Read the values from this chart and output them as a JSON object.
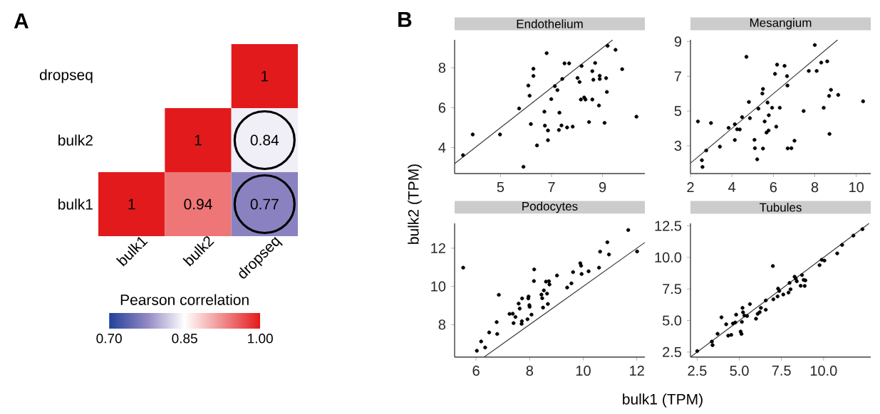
{
  "chart_data": [
    {
      "type": "heatmap",
      "title": "A",
      "categories": [
        "bulk1",
        "bulk2",
        "dropseq"
      ],
      "y_categories": [
        "dropseq",
        "bulk2",
        "bulk1"
      ],
      "cells": [
        [
          null,
          null,
          1
        ],
        [
          null,
          1,
          0.84
        ],
        [
          1,
          0.94,
          0.77
        ]
      ],
      "data_labels": true,
      "clabel": "Pearson correlation",
      "clim": [
        0.7,
        1.0
      ],
      "cticks": [
        {
          "value": 0.7,
          "label": "0.70"
        },
        0.85,
        {
          "value": 1.0,
          "label": "1.00"
        }
      ]
    },
    {
      "type": "scatter",
      "title": "Endothelium",
      "annotations": [
        "B"
      ],
      "xlim": [
        3.2,
        10.66
      ],
      "ylim": [
        2.7,
        9.4
      ],
      "xticks": [
        5,
        7,
        9
      ],
      "yticks": [
        4,
        6,
        8
      ],
      "series": [
        {
          "type": "scatter",
          "color": "#000000",
          "marker": "circle",
          "x": [
            3.53,
            3.91,
            4.98,
            5.73,
            5.9,
            6.09,
            6.14,
            6.19,
            6.29,
            6.29,
            6.43,
            6.72,
            6.74,
            6.81,
            6.86,
            6.86,
            6.99,
            7.13,
            7.23,
            7.29,
            7.31,
            7.39,
            7.42,
            7.51,
            7.69,
            7.61,
            7.83,
            8.02,
            8.1,
            8.18,
            8.15,
            8.28,
            8.33,
            8.47,
            8.6,
            8.6,
            8.64,
            8.71,
            8.86,
            8.89,
            8.89,
            9.08,
            9.14,
            9.17,
            9.2,
            9.51,
            9.77,
            10.33
          ],
          "values": [
            3.62,
            4.66,
            4.66,
            5.96,
            3.04,
            7.11,
            6.6,
            5.18,
            7.95,
            7.59,
            4.11,
            5.8,
            5.1,
            8.73,
            4.86,
            4.37,
            6.43,
            7.08,
            6.88,
            4.88,
            5.75,
            5.11,
            7.44,
            8.22,
            8.22,
            5.01,
            5.05,
            7.49,
            7.29,
            8.09,
            6.41,
            6.51,
            6.41,
            5.28,
            7.83,
            6.41,
            7.4,
            8.24,
            6.11,
            7.6,
            7.44,
            5.24,
            7.48,
            6.79,
            9.1,
            8.9,
            7.93,
            5.55
          ]
        },
        {
          "type": "line",
          "color": "#333333",
          "x": [
            3.2,
            9.4
          ],
          "values": [
            3.2,
            9.4
          ]
        }
      ]
    },
    {
      "type": "scatter",
      "title": "Mesangium",
      "xlim": [
        2.0,
        10.7
      ],
      "ylim": [
        1.4,
        9.1
      ],
      "xticks": [
        2,
        4,
        6,
        8,
        10
      ],
      "yticks": [
        3,
        5,
        7,
        9
      ],
      "series": [
        {
          "type": "scatter",
          "color": "#000000",
          "marker": "circle",
          "x": [
            2.36,
            2.55,
            2.58,
            2.76,
            2.99,
            3.42,
            3.84,
            4.14,
            4.14,
            4.25,
            4.38,
            4.49,
            4.7,
            4.82,
            4.87,
            5.09,
            5.11,
            5.22,
            5.28,
            5.47,
            5.5,
            5.5,
            5.58,
            5.67,
            5.72,
            5.77,
            5.78,
            5.94,
            6.08,
            6.14,
            6.18,
            6.31,
            6.54,
            6.66,
            6.68,
            6.69,
            6.87,
            7.02,
            7.46,
            7.71,
            8.0,
            8.09,
            8.31,
            8.43,
            8.6,
            8.69,
            8.71,
            8.78,
            9.13,
            10.33
          ],
          "values": [
            4.4,
            2.17,
            1.78,
            2.73,
            4.31,
            2.95,
            4.03,
            4.24,
            3.33,
            3.95,
            3.94,
            4.65,
            8.12,
            5.52,
            4.59,
            3.34,
            2.86,
            2.22,
            5.14,
            6.01,
            6.27,
            2.84,
            4.4,
            3.76,
            5.49,
            3.88,
            4.76,
            5.19,
            7.14,
            4.1,
            7.67,
            5.19,
            7.6,
            7.01,
            6.47,
            2.85,
            2.86,
            3.29,
            5.0,
            7.31,
            8.8,
            7.31,
            7.79,
            5.19,
            7.86,
            5.87,
            3.68,
            6.22,
            5.93,
            5.56
          ]
        },
        {
          "type": "line",
          "color": "#333333",
          "x": [
            2.0,
            9.1
          ],
          "values": [
            2.0,
            9.1
          ]
        }
      ]
    },
    {
      "type": "scatter",
      "title": "Podocytes",
      "xlabel": "bulk1 (TPM)",
      "ylabel": "bulk2 (TPM)",
      "xlim": [
        5.2,
        12.3
      ],
      "ylim": [
        6.3,
        13.3
      ],
      "xticks": [
        6,
        8,
        10,
        12
      ],
      "yticks": [
        8,
        10,
        12
      ],
      "series": [
        {
          "type": "scatter",
          "color": "#000000",
          "marker": "circle",
          "x": [
            5.52,
            6.03,
            6.19,
            6.34,
            6.49,
            6.77,
            6.79,
            6.85,
            7.25,
            7.37,
            7.4,
            7.47,
            7.59,
            7.63,
            7.7,
            7.71,
            7.72,
            7.92,
            7.95,
            7.96,
            7.99,
            8.0,
            8.07,
            8.16,
            8.17,
            8.44,
            8.47,
            8.5,
            8.53,
            8.61,
            8.65,
            8.68,
            8.72,
            8.74,
            9.02,
            9.4,
            9.56,
            9.62,
            9.89,
            9.92,
            9.94,
            10.2,
            10.59,
            10.63,
            10.9,
            10.96,
            11.68,
            12.01
          ],
          "values": [
            10.98,
            6.63,
            7.12,
            6.8,
            7.59,
            8.13,
            7.51,
            9.56,
            8.56,
            8.57,
            8.08,
            8.4,
            9.1,
            8.84,
            8.04,
            8.18,
            9.37,
            8.28,
            9.37,
            9.47,
            9.02,
            8.93,
            8.52,
            10.28,
            10.89,
            9.57,
            9.38,
            8.89,
            9.79,
            10.25,
            9.62,
            9.08,
            10.27,
            10.1,
            10.57,
            9.94,
            10.16,
            10.75,
            11.21,
            11.08,
            10.65,
            10.79,
            10.98,
            11.82,
            12.31,
            11.67,
            12.95,
            11.83
          ]
        },
        {
          "type": "line",
          "color": "#333333",
          "x": [
            6.3,
            12.3
          ],
          "values": [
            6.3,
            12.3
          ]
        }
      ]
    },
    {
      "type": "scatter",
      "title": "Tubules",
      "xlim": [
        2.1,
        12.8
      ],
      "ylim": [
        2.1,
        12.7
      ],
      "xticks": [
        2.5,
        {
          "value": 5,
          "label": "5.0"
        },
        {
          "value": 7.5,
          "label": "7.5"
        },
        {
          "value": 10,
          "label": "10.0"
        }
      ],
      "yticks": [
        2.5,
        {
          "value": 5,
          "label": "5.0"
        },
        {
          "value": 7.5,
          "label": "7.5"
        },
        {
          "value": 10,
          "label": "10.0"
        },
        {
          "value": 12.5,
          "label": "12.5"
        }
      ],
      "series": [
        {
          "type": "scatter",
          "color": "#000000",
          "marker": "circle",
          "x": [
            2.5,
            3.37,
            3.41,
            3.71,
            3.94,
            4.22,
            4.34,
            4.52,
            4.62,
            4.76,
            4.81,
            5.08,
            5.13,
            5.15,
            5.19,
            5.22,
            5.3,
            5.46,
            5.63,
            5.99,
            6.09,
            6.21,
            6.28,
            6.57,
            6.57,
            6.99,
            7.02,
            7.27,
            7.3,
            7.37,
            7.61,
            7.92,
            7.98,
            8.04,
            8.28,
            8.35,
            8.41,
            8.64,
            8.72,
            8.82,
            8.88,
            8.92,
            9.76,
            9.89,
            10.05,
            10.81,
            11.1,
            11.77,
            12.31
          ],
          "values": [
            2.58,
            3.33,
            3.05,
            3.95,
            5.25,
            4.7,
            3.8,
            3.86,
            4.76,
            4.84,
            5.46,
            4.12,
            3.93,
            4.89,
            6.0,
            5.65,
            5.4,
            5.36,
            6.3,
            5.14,
            5.53,
            5.66,
            6.0,
            5.85,
            6.59,
            9.32,
            6.68,
            6.91,
            7.53,
            7.34,
            7.06,
            7.21,
            7.98,
            7.47,
            8.47,
            8.32,
            8.11,
            7.75,
            8.6,
            8.22,
            7.74,
            8.18,
            9.39,
            9.81,
            9.75,
            10.32,
            10.99,
            11.73,
            12.24
          ]
        },
        {
          "type": "line",
          "color": "#333333",
          "x": [
            2.1,
            12.7
          ],
          "values": [
            2.1,
            12.7
          ]
        }
      ]
    }
  ]
}
